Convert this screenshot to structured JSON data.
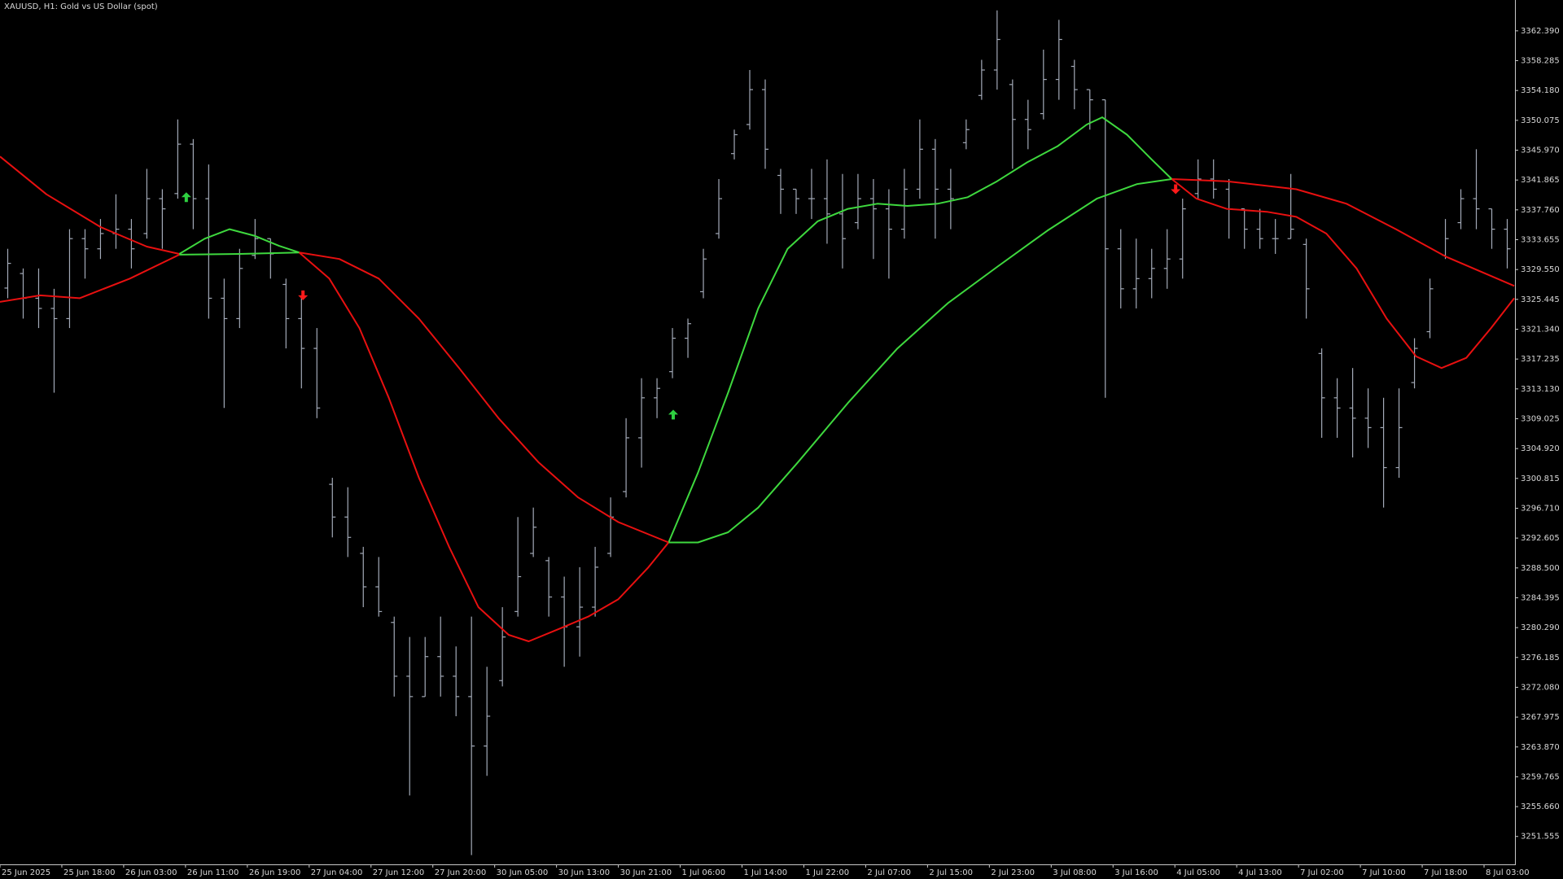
{
  "chart_data": {
    "type": "ohlc",
    "title": "XAUUSD, H1:  Gold vs US Dollar (spot)",
    "color": "#a3aab8",
    "xlim": [
      0,
      196
    ],
    "ylim": [
      3247.72,
      3366.63
    ],
    "xticks": [
      {
        "value": 0,
        "label": "25 Jun 2025"
      },
      {
        "value": 8,
        "label": "25 Jun 18:00"
      },
      {
        "value": 16,
        "label": "26 Jun 03:00"
      },
      {
        "value": 24,
        "label": "26 Jun 11:00"
      },
      {
        "value": 32,
        "label": "26 Jun 19:00"
      },
      {
        "value": 40,
        "label": "27 Jun 04:00"
      },
      {
        "value": 48,
        "label": "27 Jun 12:00"
      },
      {
        "value": 56,
        "label": "27 Jun 20:00"
      },
      {
        "value": 64,
        "label": "30 Jun 05:00"
      },
      {
        "value": 72,
        "label": "30 Jun 13:00"
      },
      {
        "value": 80,
        "label": "30 Jun 21:00"
      },
      {
        "value": 88,
        "label": "1 Jul 06:00"
      },
      {
        "value": 96,
        "label": "1 Jul 14:00"
      },
      {
        "value": 104,
        "label": "1 Jul 22:00"
      },
      {
        "value": 112,
        "label": "2 Jul 07:00"
      },
      {
        "value": 120,
        "label": "2 Jul 15:00"
      },
      {
        "value": 128,
        "label": "2 Jul 23:00"
      },
      {
        "value": 136,
        "label": "3 Jul 08:00"
      },
      {
        "value": 144,
        "label": "3 Jul 16:00"
      },
      {
        "value": 152,
        "label": "4 Jul 05:00"
      },
      {
        "value": 160,
        "label": "4 Jul 13:00"
      },
      {
        "value": 168,
        "label": "7 Jul 02:00"
      },
      {
        "value": 176,
        "label": "7 Jul 10:00"
      },
      {
        "value": 184,
        "label": "7 Jul 18:00"
      },
      {
        "value": 192,
        "label": "8 Jul 03:00"
      }
    ],
    "yticks": [
      {
        "value": 3362.39,
        "label": "3362.390"
      },
      3358.285,
      {
        "value": 3354.18,
        "label": "3354.180"
      },
      3350.075,
      {
        "value": 3345.97,
        "label": "3345.970"
      },
      3341.865,
      {
        "value": 3337.76,
        "label": "3337.760"
      },
      3333.655,
      {
        "value": 3329.55,
        "label": "3329.550"
      },
      3325.445,
      {
        "value": 3321.34,
        "label": "3321.340"
      },
      3317.235,
      {
        "value": 3313.13,
        "label": "3313.130"
      },
      3309.025,
      {
        "value": 3304.92,
        "label": "3304.920"
      },
      3300.815,
      {
        "value": 3296.71,
        "label": "3296.710"
      },
      3292.605,
      {
        "value": 3288.5,
        "label": "3288.500"
      },
      3284.395,
      {
        "value": 3280.29,
        "label": "3280.290"
      },
      3276.185,
      {
        "value": 3272.08,
        "label": "3272.080"
      },
      3267.975,
      {
        "value": 3263.87,
        "label": "3263.870"
      },
      3259.765,
      {
        "value": 3255.66,
        "label": "3255.660"
      },
      3251.555
    ],
    "x": [
      1,
      3,
      5,
      7,
      9,
      11,
      13,
      15,
      17,
      19,
      21,
      23,
      25,
      27,
      29,
      31,
      33,
      35,
      37,
      39,
      41,
      43,
      45,
      47,
      49,
      51,
      53,
      55,
      57,
      59,
      61,
      63,
      65,
      67,
      69,
      71,
      73,
      75,
      77,
      79,
      81,
      83,
      85,
      87,
      89,
      91,
      93,
      95,
      97,
      99,
      101,
      103,
      105,
      107,
      109,
      111,
      113,
      115,
      117,
      119,
      121,
      123,
      125,
      127,
      129,
      131,
      133,
      135,
      137,
      139,
      141,
      143,
      145,
      147,
      149,
      151,
      153,
      155,
      157,
      159,
      161,
      163,
      165,
      167,
      169,
      171,
      173,
      175,
      177,
      179,
      181,
      183,
      185,
      187,
      189,
      191,
      193,
      195
    ],
    "open": [
      3327.0,
      3329.0,
      3325.6,
      3324.2,
      3322.8,
      3333.8,
      3332.4,
      3334.5,
      3335.1,
      3334.5,
      3339.3,
      3340.0,
      3346.8,
      3339.3,
      3325.6,
      3322.8,
      3331.5,
      3333.8,
      3327.5,
      3322.8,
      3318.7,
      3300.0,
      3295.5,
      3290.5,
      3285.9,
      3281.0,
      3273.6,
      3270.8,
      3276.3,
      3273.6,
      3270.8,
      3264.0,
      3273.0,
      3282.5,
      3290.5,
      3289.5,
      3284.5,
      3280.4,
      3283.1,
      3290.5,
      3299.0,
      3306.4,
      3311.9,
      3315.5,
      3320.1,
      3326.5,
      3334.5,
      3345.5,
      3349.5,
      3354.3,
      3342.5,
      3340.6,
      3339.3,
      3339.3,
      3337.2,
      3336.0,
      3339.3,
      3337.9,
      3335.1,
      3340.6,
      3346.1,
      3340.6,
      3347.0,
      3353.5,
      3357.0,
      3355.0,
      3350.2,
      3351.0,
      3355.7,
      3357.5,
      3354.3,
      3352.9,
      3332.4,
      3326.9,
      3328.3,
      3329.7,
      3331.0,
      3340.0,
      3342.0,
      3340.6,
      3337.9,
      3335.1,
      3333.8,
      3333.8,
      3333.0,
      3318.0,
      3311.9,
      3310.5,
      3309.1,
      3307.8,
      3302.3,
      3314.0,
      3321.0,
      3331.5,
      3336.0,
      3339.3,
      3337.9,
      3335.1
    ],
    "high": [
      3332.4,
      3329.7,
      3329.7,
      3326.9,
      3335.1,
      3335.1,
      3336.5,
      3339.9,
      3336.5,
      3343.4,
      3340.6,
      3350.2,
      3347.5,
      3344.0,
      3328.3,
      3332.4,
      3336.5,
      3333.8,
      3328.3,
      3325.6,
      3321.5,
      3300.9,
      3299.6,
      3291.4,
      3290.0,
      3281.8,
      3279.0,
      3279.0,
      3281.8,
      3277.7,
      3281.8,
      3274.9,
      3283.1,
      3295.5,
      3296.8,
      3290.0,
      3287.3,
      3288.6,
      3291.4,
      3298.2,
      3309.1,
      3314.6,
      3314.6,
      3321.5,
      3322.8,
      3332.4,
      3342.0,
      3348.8,
      3357.0,
      3355.7,
      3343.4,
      3340.6,
      3343.4,
      3344.7,
      3342.7,
      3342.7,
      3342.0,
      3340.6,
      3343.4,
      3350.2,
      3347.5,
      3343.4,
      3350.2,
      3358.4,
      3365.2,
      3355.7,
      3352.9,
      3359.8,
      3363.9,
      3358.4,
      3354.3,
      3352.9,
      3335.1,
      3333.8,
      3332.4,
      3335.1,
      3339.3,
      3344.7,
      3344.7,
      3342.0,
      3337.9,
      3337.9,
      3336.5,
      3342.7,
      3333.8,
      3318.7,
      3314.6,
      3316.0,
      3313.2,
      3311.9,
      3313.2,
      3320.1,
      3328.3,
      3336.5,
      3340.6,
      3346.1,
      3337.9,
      3336.5
    ],
    "low": [
      3325.6,
      3322.8,
      3321.5,
      3312.6,
      3321.5,
      3328.3,
      3331.0,
      3332.4,
      3329.7,
      3333.8,
      3332.4,
      3339.3,
      3335.1,
      3322.8,
      3310.5,
      3321.5,
      3331.0,
      3328.3,
      3318.7,
      3313.2,
      3309.1,
      3292.7,
      3290.0,
      3283.1,
      3281.8,
      3270.8,
      3257.2,
      3270.8,
      3270.8,
      3268.1,
      3249.0,
      3259.9,
      3272.2,
      3281.8,
      3290.0,
      3281.8,
      3274.9,
      3276.3,
      3281.8,
      3290.0,
      3298.2,
      3302.3,
      3309.1,
      3314.6,
      3317.4,
      3325.6,
      3333.8,
      3344.7,
      3348.8,
      3343.4,
      3337.2,
      3337.2,
      3336.5,
      3333.1,
      3329.7,
      3335.1,
      3331.0,
      3328.3,
      3333.8,
      3339.3,
      3333.8,
      3335.1,
      3346.1,
      3352.9,
      3354.3,
      3343.4,
      3346.1,
      3350.2,
      3352.9,
      3351.6,
      3348.8,
      3311.9,
      3324.2,
      3324.2,
      3325.6,
      3326.9,
      3328.3,
      3339.3,
      3339.3,
      3333.8,
      3332.4,
      3332.4,
      3331.7,
      3333.8,
      3322.8,
      3306.4,
      3306.4,
      3303.7,
      3305.0,
      3296.8,
      3300.9,
      3313.2,
      3320.1,
      3331.0,
      3335.1,
      3335.1,
      3332.4,
      3329.7
    ],
    "close": [
      3330.4,
      3325.6,
      3324.2,
      3322.8,
      3333.8,
      3332.4,
      3334.5,
      3335.1,
      3332.4,
      3339.3,
      3337.9,
      3346.8,
      3339.3,
      3325.6,
      3322.8,
      3329.7,
      3333.8,
      3331.7,
      3322.8,
      3318.7,
      3310.5,
      3295.5,
      3292.7,
      3285.9,
      3282.5,
      3273.6,
      3270.8,
      3276.3,
      3273.6,
      3270.8,
      3264.0,
      3268.1,
      3279.0,
      3287.3,
      3294.1,
      3284.5,
      3280.4,
      3283.1,
      3288.6,
      3295.5,
      3306.4,
      3311.9,
      3313.2,
      3320.1,
      3322.1,
      3331.0,
      3339.3,
      3348.1,
      3354.3,
      3346.1,
      3340.6,
      3339.3,
      3339.3,
      3337.2,
      3333.8,
      3339.3,
      3337.9,
      3335.1,
      3340.6,
      3346.1,
      3340.6,
      3339.3,
      3348.8,
      3357.0,
      3361.2,
      3350.2,
      3348.8,
      3355.7,
      3361.2,
      3354.3,
      3352.9,
      3332.4,
      3326.9,
      3328.3,
      3329.7,
      3331.0,
      3337.9,
      3342.0,
      3340.6,
      3337.9,
      3335.1,
      3333.8,
      3333.8,
      3335.1,
      3326.9,
      3311.9,
      3310.5,
      3309.1,
      3307.8,
      3302.3,
      3307.8,
      3318.7,
      3326.9,
      3333.8,
      3339.3,
      3337.9,
      3335.1,
      3332.4
    ],
    "lines": [
      {
        "color": "#e81010",
        "x": [
          0,
          6,
          13,
          19,
          23.2
        ],
        "values": [
          3345.1,
          3339.9,
          3335.4,
          3332.7,
          3331.7
        ]
      },
      {
        "color": "#3ed83e",
        "x": [
          23.2,
          26.5,
          29.7,
          32.9,
          36.1,
          38.7
        ],
        "values": [
          3331.7,
          3333.8,
          3335.1,
          3334.2,
          3332.8,
          3331.9
        ]
      },
      {
        "color": "#e81010",
        "x": [
          38.7,
          42.6,
          46.5,
          50.3,
          54.2,
          58.1,
          61.9,
          65.8,
          68.4,
          72.3,
          76.1,
          80,
          83.9,
          86.5
        ],
        "values": [
          3331.9,
          3328.3,
          3321.5,
          3311.9,
          3300.9,
          3291.4,
          3283.1,
          3279.3,
          3278.4,
          3280.1,
          3281.8,
          3284.2,
          3288.6,
          3292.0
        ]
      },
      {
        "color": "#3ed83e",
        "x": [
          86.5,
          90.3,
          94.2,
          98.1,
          101.9,
          105.8,
          109.7,
          113.5,
          117.4,
          121.3,
          125.2,
          129,
          132.9,
          136.8,
          140.6,
          142.6,
          145.8,
          149,
          151.6
        ],
        "values": [
          3292.0,
          3301.6,
          3312.6,
          3324.2,
          3332.4,
          3336.2,
          3337.9,
          3338.6,
          3338.3,
          3338.6,
          3339.5,
          3341.7,
          3344.3,
          3346.5,
          3349.5,
          3350.5,
          3348.1,
          3344.7,
          3342.0
        ]
      },
      {
        "color": "#e81010",
        "x": [
          151.6,
          154.8,
          158.7,
          163.9,
          167.7,
          171.6,
          175.5,
          179.4,
          183.2,
          186.5,
          189.7,
          192.9,
          195.9
        ],
        "values": [
          3342.0,
          3339.3,
          3337.9,
          3337.5,
          3336.8,
          3334.5,
          3329.7,
          3322.8,
          3317.6,
          3316.0,
          3317.4,
          3321.5,
          3325.6
        ]
      },
      {
        "color": "#e81010",
        "x": [
          0,
          5.2,
          10.3,
          16.8,
          23.2
        ],
        "values": [
          3325.1,
          3326.0,
          3325.6,
          3328.3,
          3331.6
        ]
      },
      {
        "color": "#3ed83e",
        "x": [
          23.2,
          31,
          38.7
        ],
        "values": [
          3331.6,
          3331.7,
          3331.9
        ]
      },
      {
        "color": "#e81010",
        "x": [
          38.7,
          43.9,
          49,
          54.2,
          59.4,
          64.5,
          69.7,
          74.8,
          80,
          86.5
        ],
        "values": [
          3331.9,
          3331.0,
          3328.3,
          3322.8,
          3316.0,
          3309.1,
          3303.0,
          3298.2,
          3294.8,
          3292.0
        ]
      },
      {
        "color": "#3ed83e",
        "x": [
          86.5,
          90.3,
          94.2,
          98.1,
          103.2,
          109.7,
          116.1,
          122.6,
          129,
          135.5,
          141.9,
          147.1,
          151.6
        ],
        "values": [
          3292.0,
          3292.0,
          3293.4,
          3296.8,
          3303.0,
          3311.2,
          3318.7,
          3324.9,
          3329.9,
          3334.9,
          3339.3,
          3341.3,
          3342.0
        ]
      },
      {
        "color": "#e81010",
        "x": [
          151.6,
          158.7,
          167.7,
          174.2,
          180.6,
          187.1,
          195.9
        ],
        "values": [
          3342.0,
          3341.7,
          3340.6,
          3338.6,
          3335.1,
          3331.3,
          3327.3
        ]
      }
    ],
    "arrows": [
      {
        "x": 24.1,
        "value": 3339.5,
        "color": "#2ed040",
        "direction": "up"
      },
      {
        "x": 87.1,
        "value": 3309.6,
        "color": "#2ed040",
        "direction": "up"
      },
      {
        "x": 39.2,
        "value": 3326.0,
        "color": "#ff1a1a",
        "direction": "down"
      },
      {
        "x": 152.1,
        "value": 3340.6,
        "color": "#ff1a1a",
        "direction": "down"
      }
    ]
  }
}
